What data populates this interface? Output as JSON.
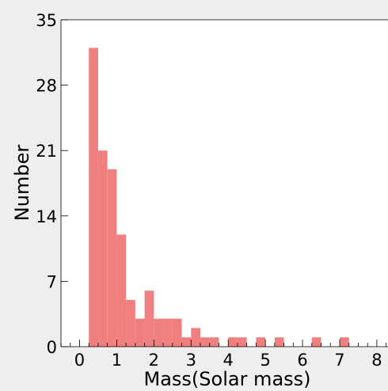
{
  "chart_data": {
    "type": "bar",
    "subtype": "histogram",
    "bin_width": 0.25,
    "bin_starts": [
      0.25,
      0.5,
      0.75,
      1.0,
      1.25,
      1.5,
      1.75,
      2.0,
      2.25,
      2.5,
      2.75,
      3.0,
      3.25,
      3.5,
      4.0,
      4.25,
      4.75,
      5.25,
      6.25,
      7.0
    ],
    "values": [
      32,
      21,
      19,
      12,
      5,
      3,
      6,
      3,
      3,
      3,
      1,
      2,
      1,
      1,
      1,
      1,
      1,
      1,
      1,
      1
    ],
    "xlabel": "Mass(Solar mass)",
    "ylabel": "Number",
    "xlim": [
      -0.5,
      8.3
    ],
    "ylim": [
      0,
      35
    ],
    "xticks": [
      0,
      1,
      2,
      3,
      4,
      5,
      6,
      7,
      8
    ],
    "yticks": [
      0,
      7,
      14,
      21,
      28,
      35
    ],
    "x_minor_step": 0.25,
    "grid": false,
    "bar_color": "#f08080",
    "axes_background": "#ffffff",
    "figure_background": "#eeeeee"
  }
}
